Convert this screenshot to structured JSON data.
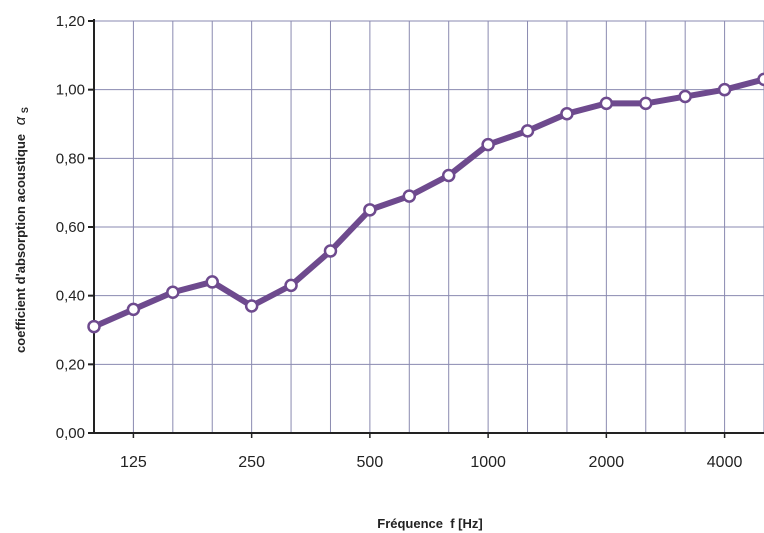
{
  "chart_data": {
    "type": "line",
    "ylabel_main": "coefficient d'absorption acoustique",
    "ylabel_symbol": "α",
    "ylabel_subscript": "S",
    "xlabel": "Fréquence  f [Hz]",
    "ylim": [
      0,
      1.2
    ],
    "yticks": [
      {
        "value": 0.0,
        "label": "0,00"
      },
      {
        "value": 0.2,
        "label": "0,20"
      },
      {
        "value": 0.4,
        "label": "0,40"
      },
      {
        "value": 0.6,
        "label": "0,60"
      },
      {
        "value": 0.8,
        "label": "0,80"
      },
      {
        "value": 1.0,
        "label": "1,00"
      },
      {
        "value": 1.2,
        "label": "1,20"
      }
    ],
    "x": [
      100,
      125,
      160,
      200,
      250,
      315,
      400,
      500,
      630,
      800,
      1000,
      1250,
      1600,
      2000,
      2500,
      3150,
      4000,
      5000
    ],
    "x_tick_labels": [
      "125",
      "250",
      "500",
      "1000",
      "2000",
      "4000"
    ],
    "x_tick_values": [
      125,
      250,
      500,
      1000,
      2000,
      4000
    ],
    "series": [
      {
        "values": [
          0.31,
          0.36,
          0.41,
          0.44,
          0.37,
          0.43,
          0.53,
          0.65,
          0.69,
          0.75,
          0.84,
          0.88,
          0.93,
          0.96,
          0.96,
          0.98,
          1.0,
          1.03
        ],
        "color": "#6e4a8e",
        "marker_fill": "#ffffff"
      }
    ],
    "grid": true,
    "grid_color": "#8a8ab0",
    "axis_color": "#222222"
  }
}
